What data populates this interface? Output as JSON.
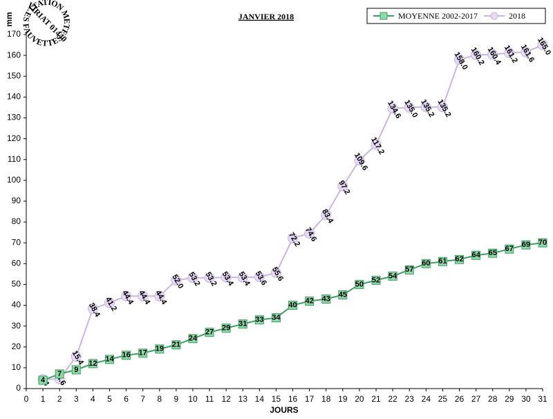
{
  "chart_data": {
    "type": "line",
    "title": "JANVIER 2018",
    "y_label": "mm",
    "x_label": "JOURS",
    "logo": {
      "top": "STATION METEO",
      "middle": "VIRIAT 01440",
      "bottom": "LES FAUVETTES"
    },
    "x": [
      1,
      2,
      3,
      4,
      5,
      6,
      7,
      8,
      9,
      10,
      11,
      12,
      13,
      14,
      15,
      16,
      17,
      18,
      19,
      20,
      21,
      22,
      23,
      24,
      25,
      26,
      27,
      28,
      29,
      30,
      31
    ],
    "series": [
      {
        "name": "MOYENNE 2002-2017",
        "color": "#3aa060",
        "marker": "square",
        "values": [
          4,
          7,
          9,
          12,
          14,
          16,
          17,
          19,
          21,
          24,
          27,
          29,
          31,
          33,
          34,
          40,
          42,
          43,
          45,
          50,
          52,
          54,
          57,
          60,
          61,
          62,
          64,
          65,
          67,
          69,
          70
        ]
      },
      {
        "name": "2018",
        "color": "#c8b4e0",
        "marker": "circle",
        "values": [
          4.4,
          4.6,
          15.4,
          38.4,
          41.2,
          44.4,
          44.4,
          44.4,
          52,
          53.2,
          53.2,
          53.4,
          53.4,
          53.6,
          55.6,
          72.2,
          74.6,
          83.4,
          97.2,
          109.6,
          117.2,
          134.6,
          135,
          135.2,
          135.2,
          158,
          160.2,
          160.4,
          161.2,
          161.6,
          165
        ],
        "value_labels": [
          "4.4",
          "4.6",
          "15.4",
          "38.4",
          "41.2",
          "44.4",
          "44.4",
          "44.4",
          "52.0",
          "53.2",
          "53.2",
          "53.4",
          "53.4",
          "53.6",
          "55.6",
          "72.2",
          "74.6",
          "83.4",
          "97.2",
          "109.6",
          "117.2",
          "134.6",
          "135.0",
          "135.2",
          "135.2",
          "158.0",
          "160.2",
          "160.4",
          "161.2",
          "161.6",
          "165.0"
        ]
      }
    ],
    "xlim": [
      0,
      31
    ],
    "xticks": [
      0,
      1,
      2,
      3,
      4,
      5,
      6,
      7,
      8,
      9,
      10,
      11,
      12,
      13,
      14,
      15,
      16,
      17,
      18,
      19,
      20,
      21,
      22,
      23,
      24,
      25,
      26,
      27,
      28,
      29,
      30,
      31
    ],
    "ylim": [
      0,
      170
    ],
    "yticks": [
      0,
      10,
      20,
      30,
      40,
      50,
      60,
      70,
      80,
      90,
      100,
      110,
      120,
      130,
      140,
      150,
      160,
      170
    ],
    "grid": false,
    "legend": "top-right"
  }
}
